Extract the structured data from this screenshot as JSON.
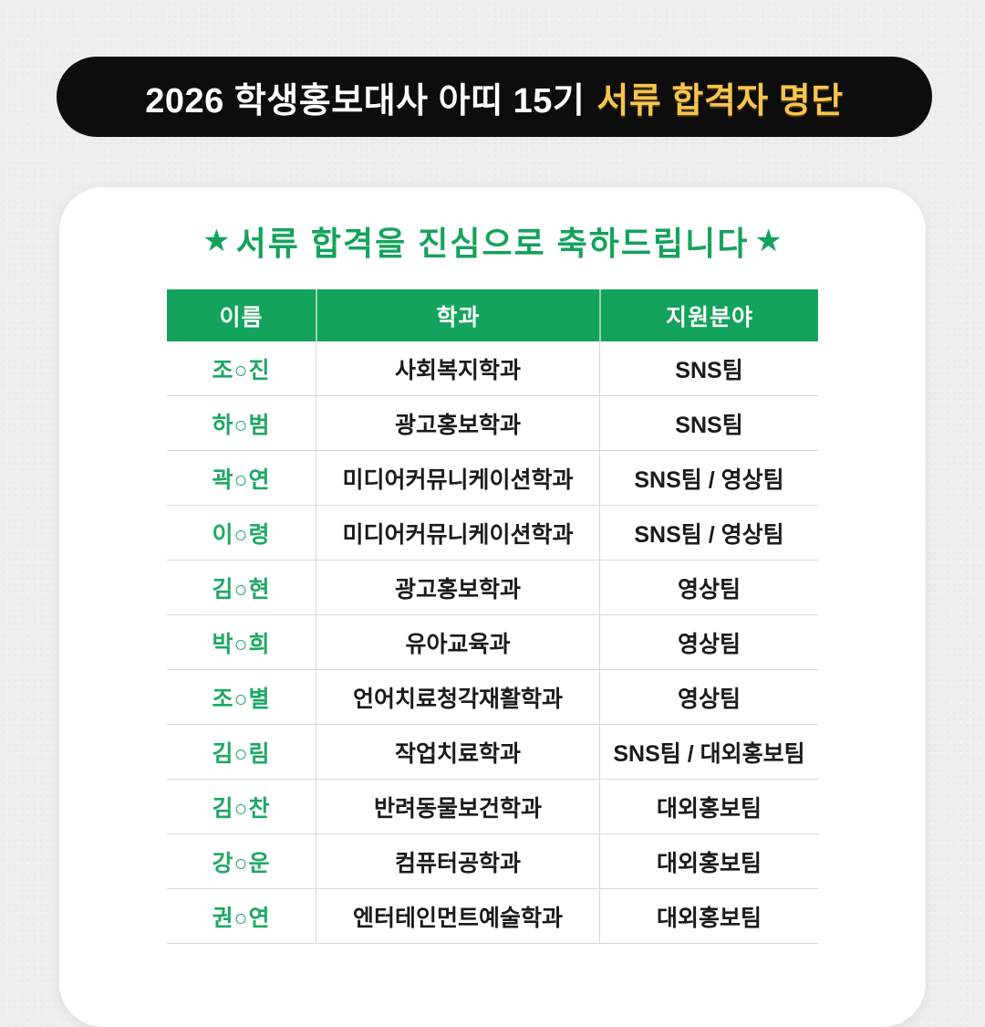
{
  "banner": {
    "title": "2026 학생홍보대사 아띠 15기",
    "highlight": "서류 합격자 명단"
  },
  "card": {
    "heading": {
      "star_left": "★",
      "text": "서류 합격을 진심으로 축하드립니다",
      "star_right": "★"
    },
    "table": {
      "columns": [
        "이름",
        "학과",
        "지원분야"
      ],
      "rows": [
        {
          "name": "조○진",
          "department": "사회복지학과",
          "field": "SNS팀"
        },
        {
          "name": "하○범",
          "department": "광고홍보학과",
          "field": "SNS팀"
        },
        {
          "name": "곽○연",
          "department": "미디어커뮤니케이션학과",
          "field": "SNS팀 / 영상팀"
        },
        {
          "name": "이○령",
          "department": "미디어커뮤니케이션학과",
          "field": "SNS팀 / 영상팀"
        },
        {
          "name": "김○현",
          "department": "광고홍보학과",
          "field": "영상팀"
        },
        {
          "name": "박○희",
          "department": "유아교육과",
          "field": "영상팀"
        },
        {
          "name": "조○별",
          "department": "언어치료청각재활학과",
          "field": "영상팀"
        },
        {
          "name": "김○림",
          "department": "작업치료학과",
          "field": "SNS팀 / 대외홍보팀"
        },
        {
          "name": "김○찬",
          "department": "반려동물보건학과",
          "field": "대외홍보팀"
        },
        {
          "name": "강○운",
          "department": "컴퓨터공학과",
          "field": "대외홍보팀"
        },
        {
          "name": "권○연",
          "department": "엔터테인먼트예술학과",
          "field": "대외홍보팀"
        }
      ]
    }
  },
  "colors": {
    "page_bg": "#f0eeec",
    "banner_bg": "#0d0d0d",
    "banner_text": "#ffffff",
    "banner_accent": "#f7c54e",
    "green": "#14a35c",
    "name_green": "#1ea863",
    "body_text": "#1b1b1b",
    "divider": "#d9d9d9",
    "card_bg": "#ffffff"
  }
}
